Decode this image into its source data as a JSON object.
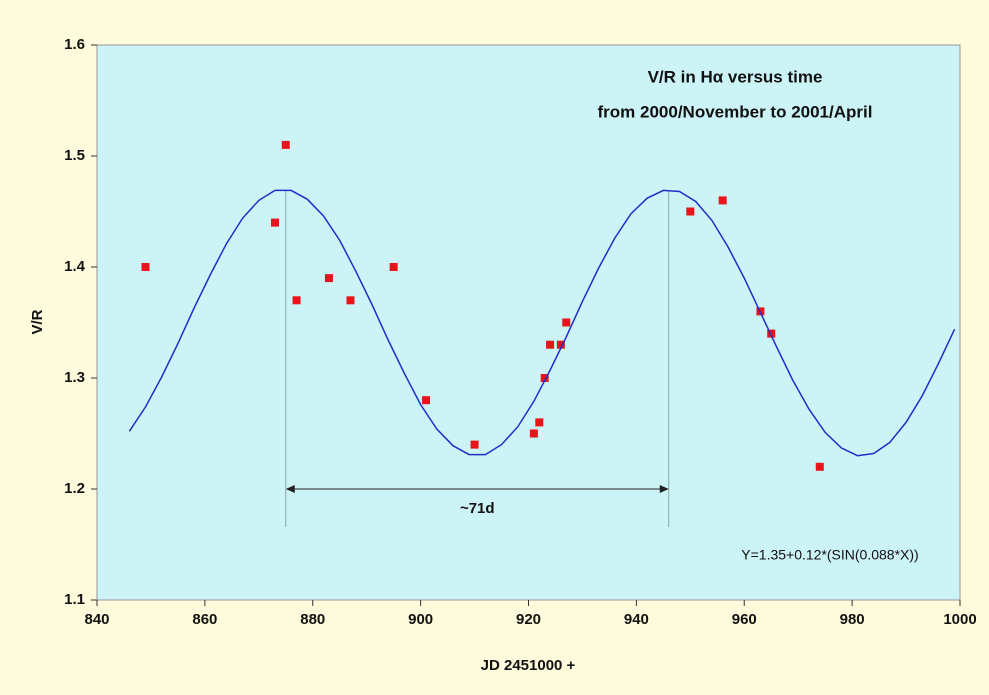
{
  "chart_data": {
    "type": "scatter",
    "title": "V/R in Hα versus time",
    "subtitle": "from 2000/November to 2001/April",
    "x_label": "JD 2451000 +",
    "y_label": "V/R",
    "formula": "Y=1.35+0.12*(SIN(0.088*X))",
    "xlim": [
      840,
      1000
    ],
    "ylim": [
      1.1,
      1.6
    ],
    "xticks": [
      840,
      860,
      880,
      900,
      920,
      940,
      960,
      980,
      1000
    ],
    "yticks": [
      1.1,
      1.2,
      1.3,
      1.4,
      1.5,
      1.6
    ],
    "series": [
      {
        "type": "scatter",
        "color": "#e8141a",
        "x": [
          849,
          873,
          875,
          877,
          883,
          887,
          895,
          901,
          910,
          921,
          922,
          923,
          924,
          926,
          927,
          950,
          956,
          963,
          965,
          974
        ],
        "values": [
          1.4,
          1.44,
          1.51,
          1.37,
          1.39,
          1.37,
          1.4,
          1.28,
          1.24,
          1.25,
          1.26,
          1.3,
          1.33,
          1.33,
          1.35,
          1.45,
          1.46,
          1.36,
          1.34,
          1.22
        ]
      },
      {
        "type": "line",
        "color": "#1f2fc8",
        "x": [
          846,
          849,
          852,
          855,
          858,
          861,
          864,
          867,
          870,
          873,
          876,
          879,
          882,
          885,
          888,
          891,
          894,
          897,
          900,
          903,
          906,
          909,
          912,
          915,
          918,
          921,
          924,
          927,
          930,
          933,
          936,
          939,
          942,
          945,
          948,
          951,
          954,
          957,
          960,
          963,
          966,
          969,
          972,
          975,
          978,
          981,
          984,
          987,
          990,
          993,
          996,
          999
        ],
        "values": [
          1.252,
          1.274,
          1.301,
          1.331,
          1.363,
          1.393,
          1.421,
          1.444,
          1.46,
          1.469,
          1.469,
          1.461,
          1.446,
          1.424,
          1.396,
          1.366,
          1.334,
          1.304,
          1.276,
          1.254,
          1.239,
          1.231,
          1.231,
          1.24,
          1.256,
          1.279,
          1.307,
          1.337,
          1.369,
          1.399,
          1.426,
          1.448,
          1.462,
          1.469,
          1.468,
          1.459,
          1.442,
          1.418,
          1.39,
          1.359,
          1.328,
          1.298,
          1.272,
          1.251,
          1.237,
          1.23,
          1.232,
          1.242,
          1.26,
          1.284,
          1.313,
          1.344
        ]
      }
    ],
    "period_marker": {
      "label": "~71d",
      "x": [
        875,
        946
      ],
      "y": 1.2
    }
  }
}
